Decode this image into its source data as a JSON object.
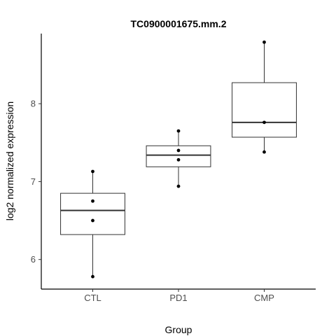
{
  "chart_data": {
    "type": "box",
    "title": "TC0900001675.mm.2",
    "xlabel": "Group",
    "ylabel": "log2 normalized expression",
    "categories": [
      "CTL",
      "PD1",
      "CMP"
    ],
    "ylim": [
      5.62,
      8.9
    ],
    "yticks": [
      6,
      7,
      8
    ],
    "grid": false,
    "boxes": [
      {
        "group": "CTL",
        "min": 5.78,
        "q1": 6.32,
        "median": 6.63,
        "q3": 6.85,
        "max": 7.13
      },
      {
        "group": "PD1",
        "min": 6.94,
        "q1": 7.19,
        "median": 7.34,
        "q3": 7.46,
        "max": 7.65
      },
      {
        "group": "CMP",
        "min": 7.38,
        "q1": 7.57,
        "median": 7.76,
        "q3": 8.27,
        "max": 8.79
      }
    ],
    "points": [
      {
        "group": "CTL",
        "values": [
          7.13,
          6.75,
          6.5,
          5.78
        ]
      },
      {
        "group": "PD1",
        "values": [
          7.65,
          7.4,
          7.28,
          6.94
        ]
      },
      {
        "group": "CMP",
        "values": [
          8.79,
          7.76,
          7.38
        ]
      }
    ]
  }
}
